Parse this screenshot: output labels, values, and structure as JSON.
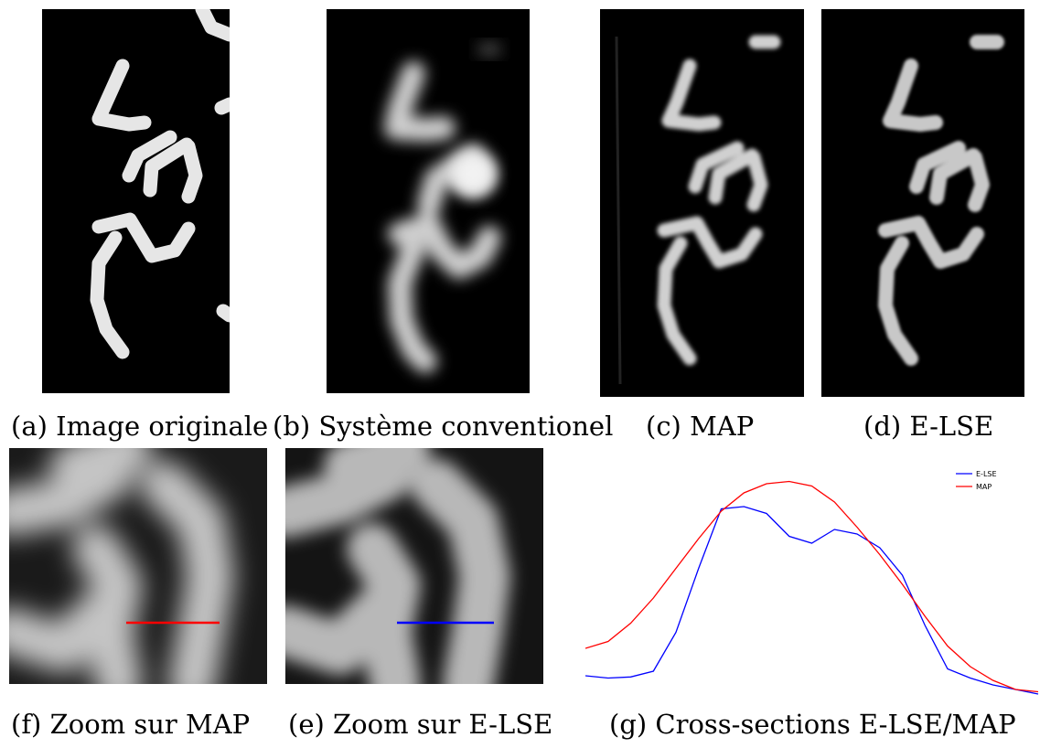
{
  "figure": {
    "captions": {
      "a": "(a) Image originale",
      "b": "(b) Système conventionel",
      "c": "(c) MAP",
      "d": "(d) E-LSE",
      "f": "(f) Zoom sur MAP",
      "e": "(e) Zoom sur E-LSE",
      "g": "(g) Cross-sections E-LSE/MAP"
    },
    "colors": {
      "else_line": "#0000ff",
      "map_line": "#ff0000",
      "panel_background": "#000000"
    }
  },
  "chart_data": {
    "type": "line",
    "title": "",
    "xlabel": "",
    "ylabel": "",
    "x": [
      0,
      1,
      2,
      3,
      4,
      5,
      6,
      7,
      8,
      9,
      10,
      11,
      12,
      13,
      14,
      15,
      16,
      17,
      18,
      19,
      20
    ],
    "ylim": [
      0,
      1
    ],
    "grid": false,
    "legend": "top-right",
    "series": [
      {
        "name": "E-LSE",
        "color": "#0000ff",
        "values": [
          0.08,
          0.07,
          0.075,
          0.1,
          0.27,
          0.55,
          0.81,
          0.82,
          0.79,
          0.69,
          0.66,
          0.72,
          0.7,
          0.64,
          0.52,
          0.3,
          0.11,
          0.07,
          0.04,
          0.02,
          0.0
        ]
      },
      {
        "name": "MAP",
        "color": "#ff0000",
        "values": [
          0.2,
          0.23,
          0.31,
          0.42,
          0.55,
          0.68,
          0.8,
          0.88,
          0.92,
          0.93,
          0.91,
          0.84,
          0.73,
          0.61,
          0.48,
          0.34,
          0.21,
          0.12,
          0.06,
          0.02,
          0.01
        ]
      }
    ]
  }
}
